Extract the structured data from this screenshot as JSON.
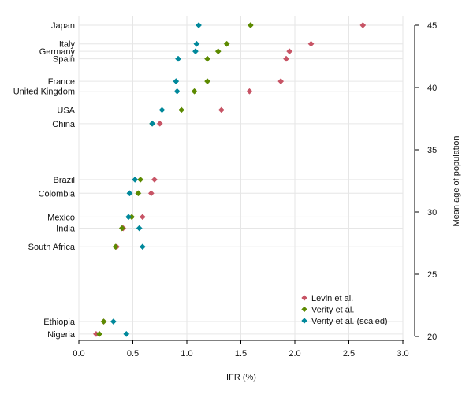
{
  "chart_data": {
    "type": "scatter",
    "xlabel": "IFR (%)",
    "ylabel": "Mean age of population",
    "xlim": [
      0,
      3
    ],
    "ylim": [
      20,
      45
    ],
    "x_ticks": [
      0,
      0.5,
      1,
      1.5,
      2,
      2.5,
      3
    ],
    "x_tick_labels": [
      "0.0",
      "0.5",
      "1.0",
      "1.5",
      "2.0",
      "2.5",
      "3.0"
    ],
    "y_ticks": [
      20,
      25,
      30,
      35,
      40,
      45
    ],
    "y_tick_labels": [
      "20",
      "25",
      "30",
      "35",
      "40",
      "45"
    ],
    "grid": true,
    "legend_position": "bottom-right",
    "series": [
      {
        "name": "Levin et al.",
        "color": "#c75465",
        "marker": "diamond"
      },
      {
        "name": "Verity et al.",
        "color": "#5c8a00",
        "marker": "diamond"
      },
      {
        "name": "Verity et al. (scaled)",
        "color": "#00889b",
        "marker": "diamond"
      }
    ],
    "countries": [
      {
        "name": "Japan",
        "age": 45.0,
        "values": [
          2.63,
          1.59,
          1.11
        ]
      },
      {
        "name": "Italy",
        "age": 43.5,
        "values": [
          2.15,
          1.37,
          1.09
        ]
      },
      {
        "name": "Germany",
        "age": 42.9,
        "values": [
          1.95,
          1.29,
          1.08
        ]
      },
      {
        "name": "Spain",
        "age": 42.3,
        "values": [
          1.92,
          1.19,
          0.92
        ]
      },
      {
        "name": "France",
        "age": 40.5,
        "values": [
          1.87,
          1.19,
          0.9
        ]
      },
      {
        "name": "United Kingdom",
        "age": 39.7,
        "values": [
          1.58,
          1.07,
          0.91
        ]
      },
      {
        "name": "USA",
        "age": 38.2,
        "values": [
          1.32,
          0.95,
          0.77
        ]
      },
      {
        "name": "China",
        "age": 37.1,
        "values": [
          0.75,
          0.68,
          0.68
        ]
      },
      {
        "name": "Brazil",
        "age": 32.6,
        "values": [
          0.7,
          0.57,
          0.52
        ]
      },
      {
        "name": "Colombia",
        "age": 31.5,
        "values": [
          0.67,
          0.55,
          0.47
        ]
      },
      {
        "name": "Mexico",
        "age": 29.6,
        "values": [
          0.59,
          0.49,
          0.46
        ]
      },
      {
        "name": "India",
        "age": 28.7,
        "values": [
          0.41,
          0.4,
          0.56
        ]
      },
      {
        "name": "South Africa",
        "age": 27.2,
        "values": [
          0.35,
          0.34,
          0.59
        ]
      },
      {
        "name": "Ethiopia",
        "age": 21.2,
        "values": [
          0.23,
          0.23,
          0.32
        ]
      },
      {
        "name": "Nigeria",
        "age": 20.2,
        "values": [
          0.16,
          0.19,
          0.44
        ]
      }
    ]
  }
}
